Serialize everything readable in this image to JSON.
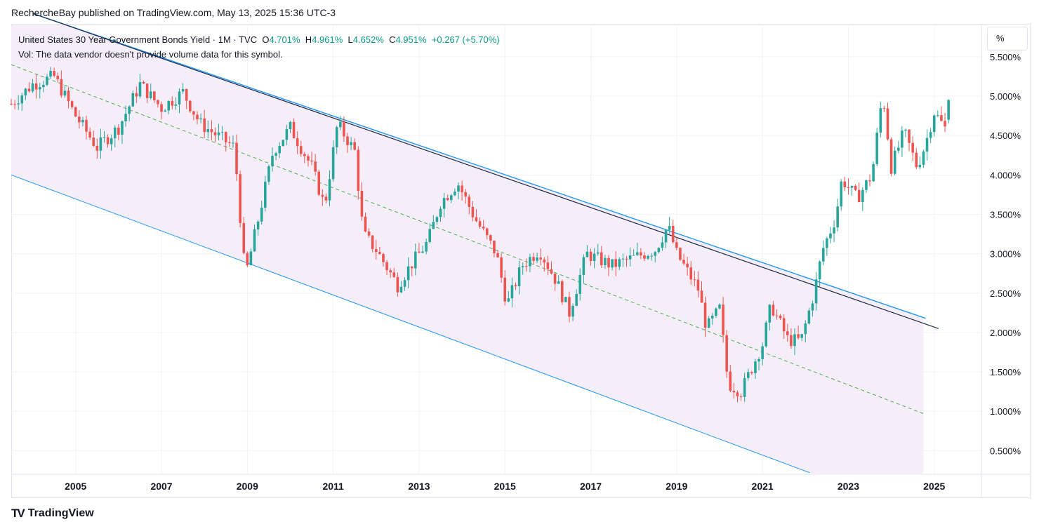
{
  "header": {
    "publisher": "RechercheBay published on TradingView.com, May 13, 2025 15:36 UTC-3"
  },
  "legend": {
    "symbol": "United States 30 Year Government Bonds Yield · 1M · TVC",
    "o_label": "O",
    "o_value": "4.701%",
    "h_label": "H",
    "h_value": "4.961%",
    "l_label": "L",
    "l_value": "4.652%",
    "c_label": "C",
    "c_value": "4.951%",
    "change": "+0.267 (+5.70%)",
    "vol_note": "Vol: The data vendor doesn't provide volume data for this symbol."
  },
  "scale_badge": "%",
  "footer": {
    "brand": "TradingView",
    "logo": "TV"
  },
  "colors": {
    "up": "#26a69a",
    "down": "#ef5350",
    "channel_fill": "#f5eef8",
    "line_blue": "#2196f3",
    "trend_dark": "#1f2a44",
    "mid_green": "#4caf50"
  },
  "chart_data": {
    "type": "candlestick",
    "title": "United States 30 Year Government Bonds Yield",
    "interval": "1M",
    "x_ticks": [
      "2005",
      "2007",
      "2009",
      "2011",
      "2013",
      "2015",
      "2017",
      "2019",
      "2021",
      "2023",
      "2025"
    ],
    "y_ticks": [
      "5.500%",
      "5.000%",
      "4.500%",
      "4.000%",
      "3.500%",
      "3.000%",
      "2.500%",
      "2.000%",
      "1.500%",
      "1.000%",
      "0.500%"
    ],
    "x_range": [
      2003.5,
      2026.1
    ],
    "y_range": [
      0.2,
      5.9
    ],
    "anchors": [
      [
        2003.5,
        4.9
      ],
      [
        2004.0,
        5.15
      ],
      [
        2004.5,
        5.25
      ],
      [
        2005.0,
        4.75
      ],
      [
        2005.5,
        4.35
      ],
      [
        2006.0,
        4.6
      ],
      [
        2006.5,
        5.15
      ],
      [
        2007.0,
        4.85
      ],
      [
        2007.5,
        5.05
      ],
      [
        2007.9,
        4.65
      ],
      [
        2008.3,
        4.5
      ],
      [
        2008.7,
        4.35
      ],
      [
        2008.95,
        2.7
      ],
      [
        2009.3,
        3.55
      ],
      [
        2009.6,
        4.3
      ],
      [
        2010.0,
        4.6
      ],
      [
        2010.5,
        4.1
      ],
      [
        2010.8,
        3.6
      ],
      [
        2011.1,
        4.65
      ],
      [
        2011.5,
        4.3
      ],
      [
        2011.7,
        3.25
      ],
      [
        2012.0,
        3.05
      ],
      [
        2012.5,
        2.6
      ],
      [
        2012.8,
        2.85
      ],
      [
        2013.2,
        3.15
      ],
      [
        2013.5,
        3.65
      ],
      [
        2013.9,
        3.9
      ],
      [
        2014.3,
        3.45
      ],
      [
        2014.8,
        3.0
      ],
      [
        2015.05,
        2.35
      ],
      [
        2015.4,
        2.85
      ],
      [
        2015.8,
        3.05
      ],
      [
        2016.2,
        2.65
      ],
      [
        2016.5,
        2.25
      ],
      [
        2016.9,
        3.0
      ],
      [
        2017.5,
        2.85
      ],
      [
        2018.0,
        2.95
      ],
      [
        2018.5,
        3.05
      ],
      [
        2018.8,
        3.35
      ],
      [
        2019.0,
        3.0
      ],
      [
        2019.5,
        2.55
      ],
      [
        2019.7,
        2.05
      ],
      [
        2020.0,
        2.3
      ],
      [
        2020.2,
        1.35
      ],
      [
        2020.5,
        1.25
      ],
      [
        2021.0,
        1.85
      ],
      [
        2021.2,
        2.35
      ],
      [
        2021.6,
        1.9
      ],
      [
        2021.9,
        1.9
      ],
      [
        2022.2,
        2.5
      ],
      [
        2022.4,
        3.05
      ],
      [
        2022.7,
        3.45
      ],
      [
        2022.85,
        3.95
      ],
      [
        2023.2,
        3.7
      ],
      [
        2023.55,
        4.0
      ],
      [
        2023.8,
        5.05
      ],
      [
        2024.0,
        4.1
      ],
      [
        2024.3,
        4.55
      ],
      [
        2024.6,
        4.1
      ],
      [
        2024.8,
        4.4
      ],
      [
        2025.0,
        4.8
      ],
      [
        2025.3,
        4.55
      ],
      [
        2025.37,
        4.95
      ]
    ],
    "last_candle": {
      "open": 4.701,
      "high": 4.961,
      "low": 4.652,
      "close": 4.951
    },
    "channel": {
      "upper_line": [
        [
          2004.0,
          6.05
        ],
        [
          2025.1,
          2.05
        ]
      ],
      "upper_blue": [
        [
          2004.0,
          6.05
        ],
        [
          2024.8,
          2.18
        ]
      ],
      "middle_dashed": [
        [
          2003.5,
          5.4
        ],
        [
          2024.75,
          0.97
        ]
      ],
      "lower_line": [
        [
          2003.5,
          4.0
        ],
        [
          2022.1,
          0.22
        ]
      ],
      "fill_end_year": 2024.75
    }
  }
}
